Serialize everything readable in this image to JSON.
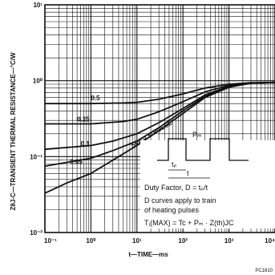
{
  "chart_data": {
    "type": "line",
    "title": "",
    "xlabel": "t—TIME—ms",
    "ylabel": "ZθJ-C—TRANSIENT THERMAL RESISTANCE—°C/W",
    "xscale": "log",
    "yscale": "log",
    "xlim": [
      0.1,
      10000
    ],
    "ylim": [
      0.01,
      10
    ],
    "grid": true,
    "x_ticks": [
      {
        "value": 0.1,
        "label": "10⁻¹"
      },
      {
        "value": 1,
        "label": "10⁰"
      },
      {
        "value": 10,
        "label": "10¹"
      },
      {
        "value": 100,
        "label": "10²"
      },
      {
        "value": 1000,
        "label": "10³"
      },
      {
        "value": 10000,
        "label": "10⁴"
      }
    ],
    "y_ticks": [
      {
        "value": 0.01,
        "label": "10⁻²"
      },
      {
        "value": 0.1,
        "label": "10⁻¹"
      },
      {
        "value": 1,
        "label": "10⁰"
      },
      {
        "value": 10,
        "label": "10¹"
      }
    ],
    "series": [
      {
        "name": "0.5",
        "label_at": [
          1.0,
          0.55
        ],
        "points": [
          [
            0.1,
            0.5
          ],
          [
            1,
            0.5
          ],
          [
            5,
            0.51
          ],
          [
            10,
            0.52
          ],
          [
            30,
            0.57
          ],
          [
            100,
            0.67
          ],
          [
            300,
            0.8
          ],
          [
            1000,
            0.9
          ],
          [
            3000,
            0.94
          ],
          [
            10000,
            0.95
          ]
        ]
      },
      {
        "name": "0.25",
        "label_at": [
          0.5,
          0.29
        ],
        "points": [
          [
            0.1,
            0.27
          ],
          [
            1,
            0.27
          ],
          [
            5,
            0.29
          ],
          [
            10,
            0.31
          ],
          [
            30,
            0.39
          ],
          [
            100,
            0.53
          ],
          [
            300,
            0.71
          ],
          [
            1000,
            0.87
          ],
          [
            3000,
            0.93
          ],
          [
            10000,
            0.95
          ]
        ]
      },
      {
        "name": "0.1",
        "label_at": [
          0.6,
          0.138
        ],
        "points": [
          [
            0.1,
            0.125
          ],
          [
            1,
            0.14
          ],
          [
            3,
            0.16
          ],
          [
            10,
            0.2
          ],
          [
            30,
            0.28
          ],
          [
            100,
            0.43
          ],
          [
            300,
            0.65
          ],
          [
            1000,
            0.84
          ],
          [
            3000,
            0.93
          ],
          [
            10000,
            0.95
          ]
        ]
      },
      {
        "name": "0.05",
        "label_at": [
          0.35,
          0.08
        ],
        "points": [
          [
            0.1,
            0.075
          ],
          [
            1,
            0.095
          ],
          [
            3,
            0.12
          ],
          [
            10,
            0.16
          ],
          [
            30,
            0.24
          ],
          [
            100,
            0.4
          ],
          [
            300,
            0.62
          ],
          [
            1000,
            0.83
          ],
          [
            3000,
            0.93
          ],
          [
            10000,
            0.95
          ]
        ]
      },
      {
        "name": "SINGLE PULSE",
        "label_at": [
          8,
          0.13
        ],
        "label_rotate": -31,
        "points": [
          [
            0.1,
            0.033
          ],
          [
            0.3,
            0.045
          ],
          [
            1,
            0.06
          ],
          [
            3,
            0.09
          ],
          [
            10,
            0.14
          ],
          [
            30,
            0.22
          ],
          [
            100,
            0.37
          ],
          [
            300,
            0.6
          ],
          [
            1000,
            0.82
          ],
          [
            3000,
            0.93
          ],
          [
            10000,
            0.95
          ]
        ]
      }
    ],
    "annotations": {
      "pulse_label": "Pₘ",
      "tp_label": "tₚ",
      "t_label": "t",
      "duty_factor": "Duty Factor, D = tₚ/t",
      "d_curves": "D curves apply to train",
      "heating": "of heating pulses",
      "tj_formula": "Tⱼ(MAX) = Tc + Pₘ · Z(th)JC"
    },
    "figure_id": "PC1610"
  }
}
